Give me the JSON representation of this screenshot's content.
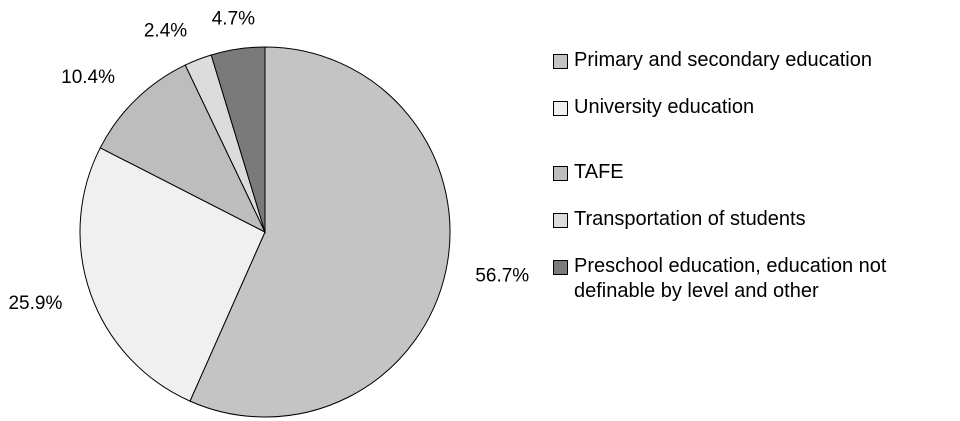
{
  "chart_data": {
    "type": "pie",
    "categories": [
      "Primary and secondary education",
      "University education",
      "TAFE",
      "Transportation of students",
      "Preschool education, education not definable by level and other"
    ],
    "values": [
      56.7,
      25.9,
      10.4,
      2.4,
      4.7
    ],
    "value_labels": [
      "56.7%",
      "25.9%",
      "10.4%",
      "2.4%",
      "4.7%"
    ],
    "colors": [
      "#c4c4c4",
      "#f0f0f0",
      "#bdbdbd",
      "#dcdcdc",
      "#7a7a7a"
    ],
    "legend": "right"
  }
}
